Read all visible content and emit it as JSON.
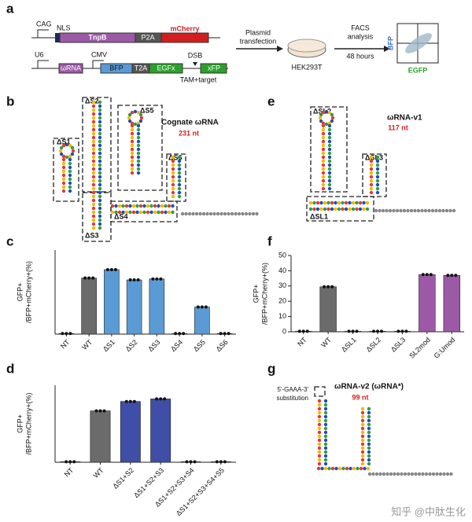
{
  "panel_labels": [
    "a",
    "b",
    "c",
    "d",
    "e",
    "f",
    "g"
  ],
  "panel_a": {
    "cag": "CAG",
    "nls": "NLS",
    "tnpb": "TnpB",
    "p2a": "P2A",
    "mcherry": "mCherry",
    "u6": "U6",
    "cmv": "CMV",
    "wrna": "ωRNA",
    "bfp": "BFP",
    "t2a": "T2A",
    "egfx": "EGFx",
    "dsb": "DSB",
    "xfp": "xFP",
    "tam": "TAM+target",
    "transfection": [
      "Plasmid",
      "transfection"
    ],
    "facs": [
      "FACS",
      "analysis",
      "48 hours"
    ],
    "cell": "HEK293T",
    "facs_y": "BFP",
    "facs_x": "EGFP"
  },
  "panel_b": {
    "labels": [
      "ΔS1",
      "ΔS2",
      "ΔS3",
      "ΔS4",
      "ΔS5",
      "ΔS6"
    ],
    "title": "Cognate ωRNA",
    "length": "231 nt"
  },
  "panel_e": {
    "labels": [
      "ΔSL1",
      "ΔSL2",
      "ΔSL3"
    ],
    "title": "ωRNA-v1",
    "length": "117 nt"
  },
  "panel_g": {
    "note": [
      "5'-GAAA-3'",
      "substitution"
    ],
    "title": "ωRNA-v2 (ωRNA*)",
    "length": "99 nt"
  },
  "watermark": "知乎 @中肽生化",
  "chart_data": [
    {
      "type": "bar",
      "y_label": [
        "GFP+",
        "/BFP+mCherry+(%)"
      ],
      "categories": [
        "NT",
        "WT",
        "ΔS1",
        "ΔS2",
        "ΔS3",
        "ΔS4",
        "ΔS5",
        "ΔS6"
      ],
      "values": [
        0.3,
        30,
        34.5,
        29,
        29.5,
        0.3,
        14.5,
        0.3
      ],
      "colors": [
        "#666666",
        "#6b6b6b",
        "#5b9bd5",
        "#5b9bd5",
        "#5b9bd5",
        "#5b9bd5",
        "#5b9bd5",
        "#5b9bd5"
      ],
      "ylim": [
        0,
        45
      ]
    },
    {
      "type": "bar",
      "y_label": [
        "GFP+",
        "/BFP+mCherry+(%)"
      ],
      "categories": [
        "NT",
        "WT",
        "ΔS1+S2",
        "ΔS1+S2+S3",
        "ΔS1+S2+S3+S4",
        "ΔS1+S2+S3+S4+S5"
      ],
      "values": [
        0.3,
        30,
        35.5,
        37,
        0.3,
        0.3
      ],
      "colors": [
        "#666666",
        "#6b6b6b",
        "#3f4fa8",
        "#3f4fa8",
        "#3f4fa8",
        "#3f4fa8"
      ],
      "ylim": [
        0,
        45
      ]
    },
    {
      "type": "bar",
      "y_label": [
        "GFP+",
        "/BFP+mCherry+(%)"
      ],
      "categories": [
        "NT",
        "WT",
        "ΔSL1",
        "ΔSL2",
        "ΔSL3",
        "SL2mod",
        "G:Umod"
      ],
      "values": [
        0.3,
        29.5,
        0.3,
        0.3,
        0.3,
        37.5,
        37
      ],
      "colors": [
        "#666666",
        "#6b6b6b",
        "#6b6b6b",
        "#6b6b6b",
        "#6b6b6b",
        "#9b59a6",
        "#9b59a6"
      ],
      "ylim": [
        0,
        50
      ],
      "yticks": [
        0,
        10,
        20,
        30,
        40,
        50
      ]
    }
  ]
}
